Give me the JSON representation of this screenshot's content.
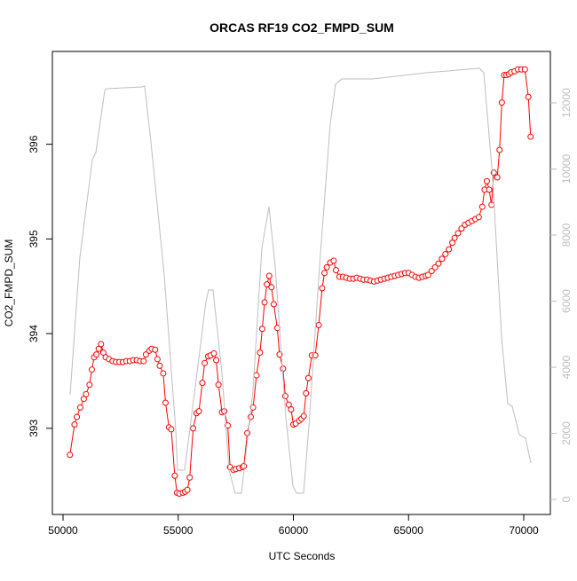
{
  "chart_data": {
    "type": "line",
    "title": "ORCAS RF19 CO2_FMPD_SUM",
    "x_label": "UTC Seconds",
    "y_label": "CO2_FMPD_SUM",
    "xlim": [
      49538,
      71156
    ],
    "xticks": [
      50000,
      55000,
      60000,
      65000,
      70000
    ],
    "ylim": [
      392.09,
      396.98
    ],
    "yticks": [
      393,
      394,
      395,
      396
    ],
    "y2lim": [
      -456,
      13557
    ],
    "y2ticks": [
      0,
      2000,
      4000,
      6000,
      8000,
      10000,
      12000
    ],
    "series": [
      {
        "color": "#ff0000",
        "markers": true,
        "axis": "y",
        "x": [
          50300,
          50500,
          50600,
          50750,
          50900,
          51000,
          51150,
          51250,
          51350,
          51450,
          51550,
          51650,
          51750,
          51850,
          52000,
          52150,
          52300,
          52450,
          52600,
          52750,
          52900,
          53050,
          53200,
          53350,
          53500,
          53600,
          53750,
          53850,
          54000,
          54100,
          54200,
          54350,
          54450,
          54600,
          54700,
          54850,
          54950,
          55050,
          55200,
          55300,
          55400,
          55500,
          55650,
          55800,
          55900,
          56050,
          56150,
          56300,
          56400,
          56550,
          56650,
          56750,
          56900,
          57000,
          57150,
          57250,
          57400,
          57500,
          57650,
          57800,
          57850,
          58000,
          58150,
          58250,
          58400,
          58550,
          58650,
          58750,
          58850,
          58950,
          59050,
          59150,
          59300,
          59400,
          59550,
          59650,
          59800,
          59900,
          60000,
          60100,
          60250,
          60350,
          60450,
          60550,
          60650,
          60800,
          60950,
          61100,
          61250,
          61350,
          61450,
          61600,
          61750,
          61850,
          62000,
          62150,
          62300,
          62450,
          62600,
          62750,
          62900,
          63050,
          63200,
          63350,
          63500,
          63650,
          63800,
          63950,
          64100,
          64250,
          64400,
          64550,
          64700,
          64850,
          65000,
          65150,
          65300,
          65450,
          65600,
          65750,
          65850,
          66000,
          66150,
          66300,
          66450,
          66600,
          66750,
          66900,
          67000,
          67150,
          67300,
          67450,
          67600,
          67750,
          67900,
          68050,
          68200,
          68300,
          68400,
          68500,
          68600,
          68700,
          68850,
          68950,
          69050,
          69150,
          69250,
          69350,
          69450,
          69600,
          69750,
          69900,
          70050,
          70200,
          70300
        ],
        "values": [
          392.72,
          393.04,
          393.12,
          393.22,
          393.31,
          393.36,
          393.46,
          393.62,
          393.75,
          393.78,
          393.84,
          393.89,
          393.8,
          393.75,
          393.73,
          393.71,
          393.7,
          393.7,
          393.7,
          393.71,
          393.71,
          393.72,
          393.72,
          393.71,
          393.71,
          393.78,
          393.82,
          393.84,
          393.83,
          393.73,
          393.66,
          393.58,
          393.27,
          393.01,
          392.99,
          392.5,
          392.32,
          392.31,
          392.32,
          392.33,
          392.35,
          392.48,
          393.0,
          393.16,
          393.18,
          393.48,
          393.69,
          393.76,
          393.77,
          393.79,
          393.72,
          393.46,
          393.17,
          393.18,
          393.03,
          392.59,
          392.56,
          392.57,
          392.58,
          392.59,
          392.6,
          392.95,
          393.12,
          393.22,
          393.56,
          393.8,
          394.05,
          394.33,
          394.52,
          394.61,
          394.49,
          394.31,
          394.06,
          393.78,
          393.63,
          393.34,
          393.25,
          393.2,
          393.04,
          393.05,
          393.08,
          393.1,
          393.13,
          393.37,
          393.53,
          393.77,
          393.77,
          394.09,
          394.48,
          394.64,
          394.7,
          394.75,
          394.77,
          394.67,
          394.6,
          394.6,
          394.59,
          394.58,
          394.58,
          394.59,
          394.58,
          394.57,
          394.57,
          394.56,
          394.55,
          394.56,
          394.57,
          394.58,
          394.59,
          394.6,
          394.61,
          394.62,
          394.63,
          394.64,
          394.64,
          394.62,
          394.6,
          394.59,
          394.6,
          394.61,
          394.62,
          394.66,
          394.7,
          394.74,
          394.79,
          394.84,
          394.89,
          394.96,
          395.01,
          395.06,
          395.11,
          395.15,
          395.17,
          395.19,
          395.21,
          395.23,
          395.34,
          395.52,
          395.61,
          395.52,
          395.36,
          395.7,
          395.65,
          395.94,
          396.44,
          396.73,
          396.73,
          396.74,
          396.76,
          396.77,
          396.79,
          396.79,
          396.79,
          396.5,
          396.08
        ]
      },
      {
        "color": "#bebebe",
        "markers": false,
        "axis": "y2",
        "x": [
          50308,
          50732,
          51272,
          51426,
          51657,
          51811,
          51888,
          53430,
          53545,
          53815,
          54393,
          54894,
          54971,
          55279,
          55819,
          56204,
          56320,
          56513,
          56898,
          57206,
          57476,
          57746,
          58247,
          58632,
          58940,
          59210,
          59672,
          59981,
          60135,
          60443,
          60674,
          61136,
          61599,
          61830,
          62100,
          63449,
          65761,
          68073,
          68266,
          68651,
          69037,
          69306,
          69499,
          69807,
          70077,
          70308
        ],
        "values": [
          3168,
          7329,
          10282,
          10497,
          11624,
          12376,
          12430,
          12483,
          12510,
          10819,
          6792,
          2094,
          886,
          886,
          3839,
          5987,
          6336,
          6336,
          3839,
          886,
          188,
          188,
          3302,
          7597,
          8859,
          7060,
          2497,
          403,
          188,
          188,
          2228,
          7060,
          11356,
          12564,
          12725,
          12725,
          12913,
          13047,
          12913,
          9745,
          4913,
          2899,
          2819,
          1960,
          1852,
          1101
        ]
      }
    ]
  }
}
